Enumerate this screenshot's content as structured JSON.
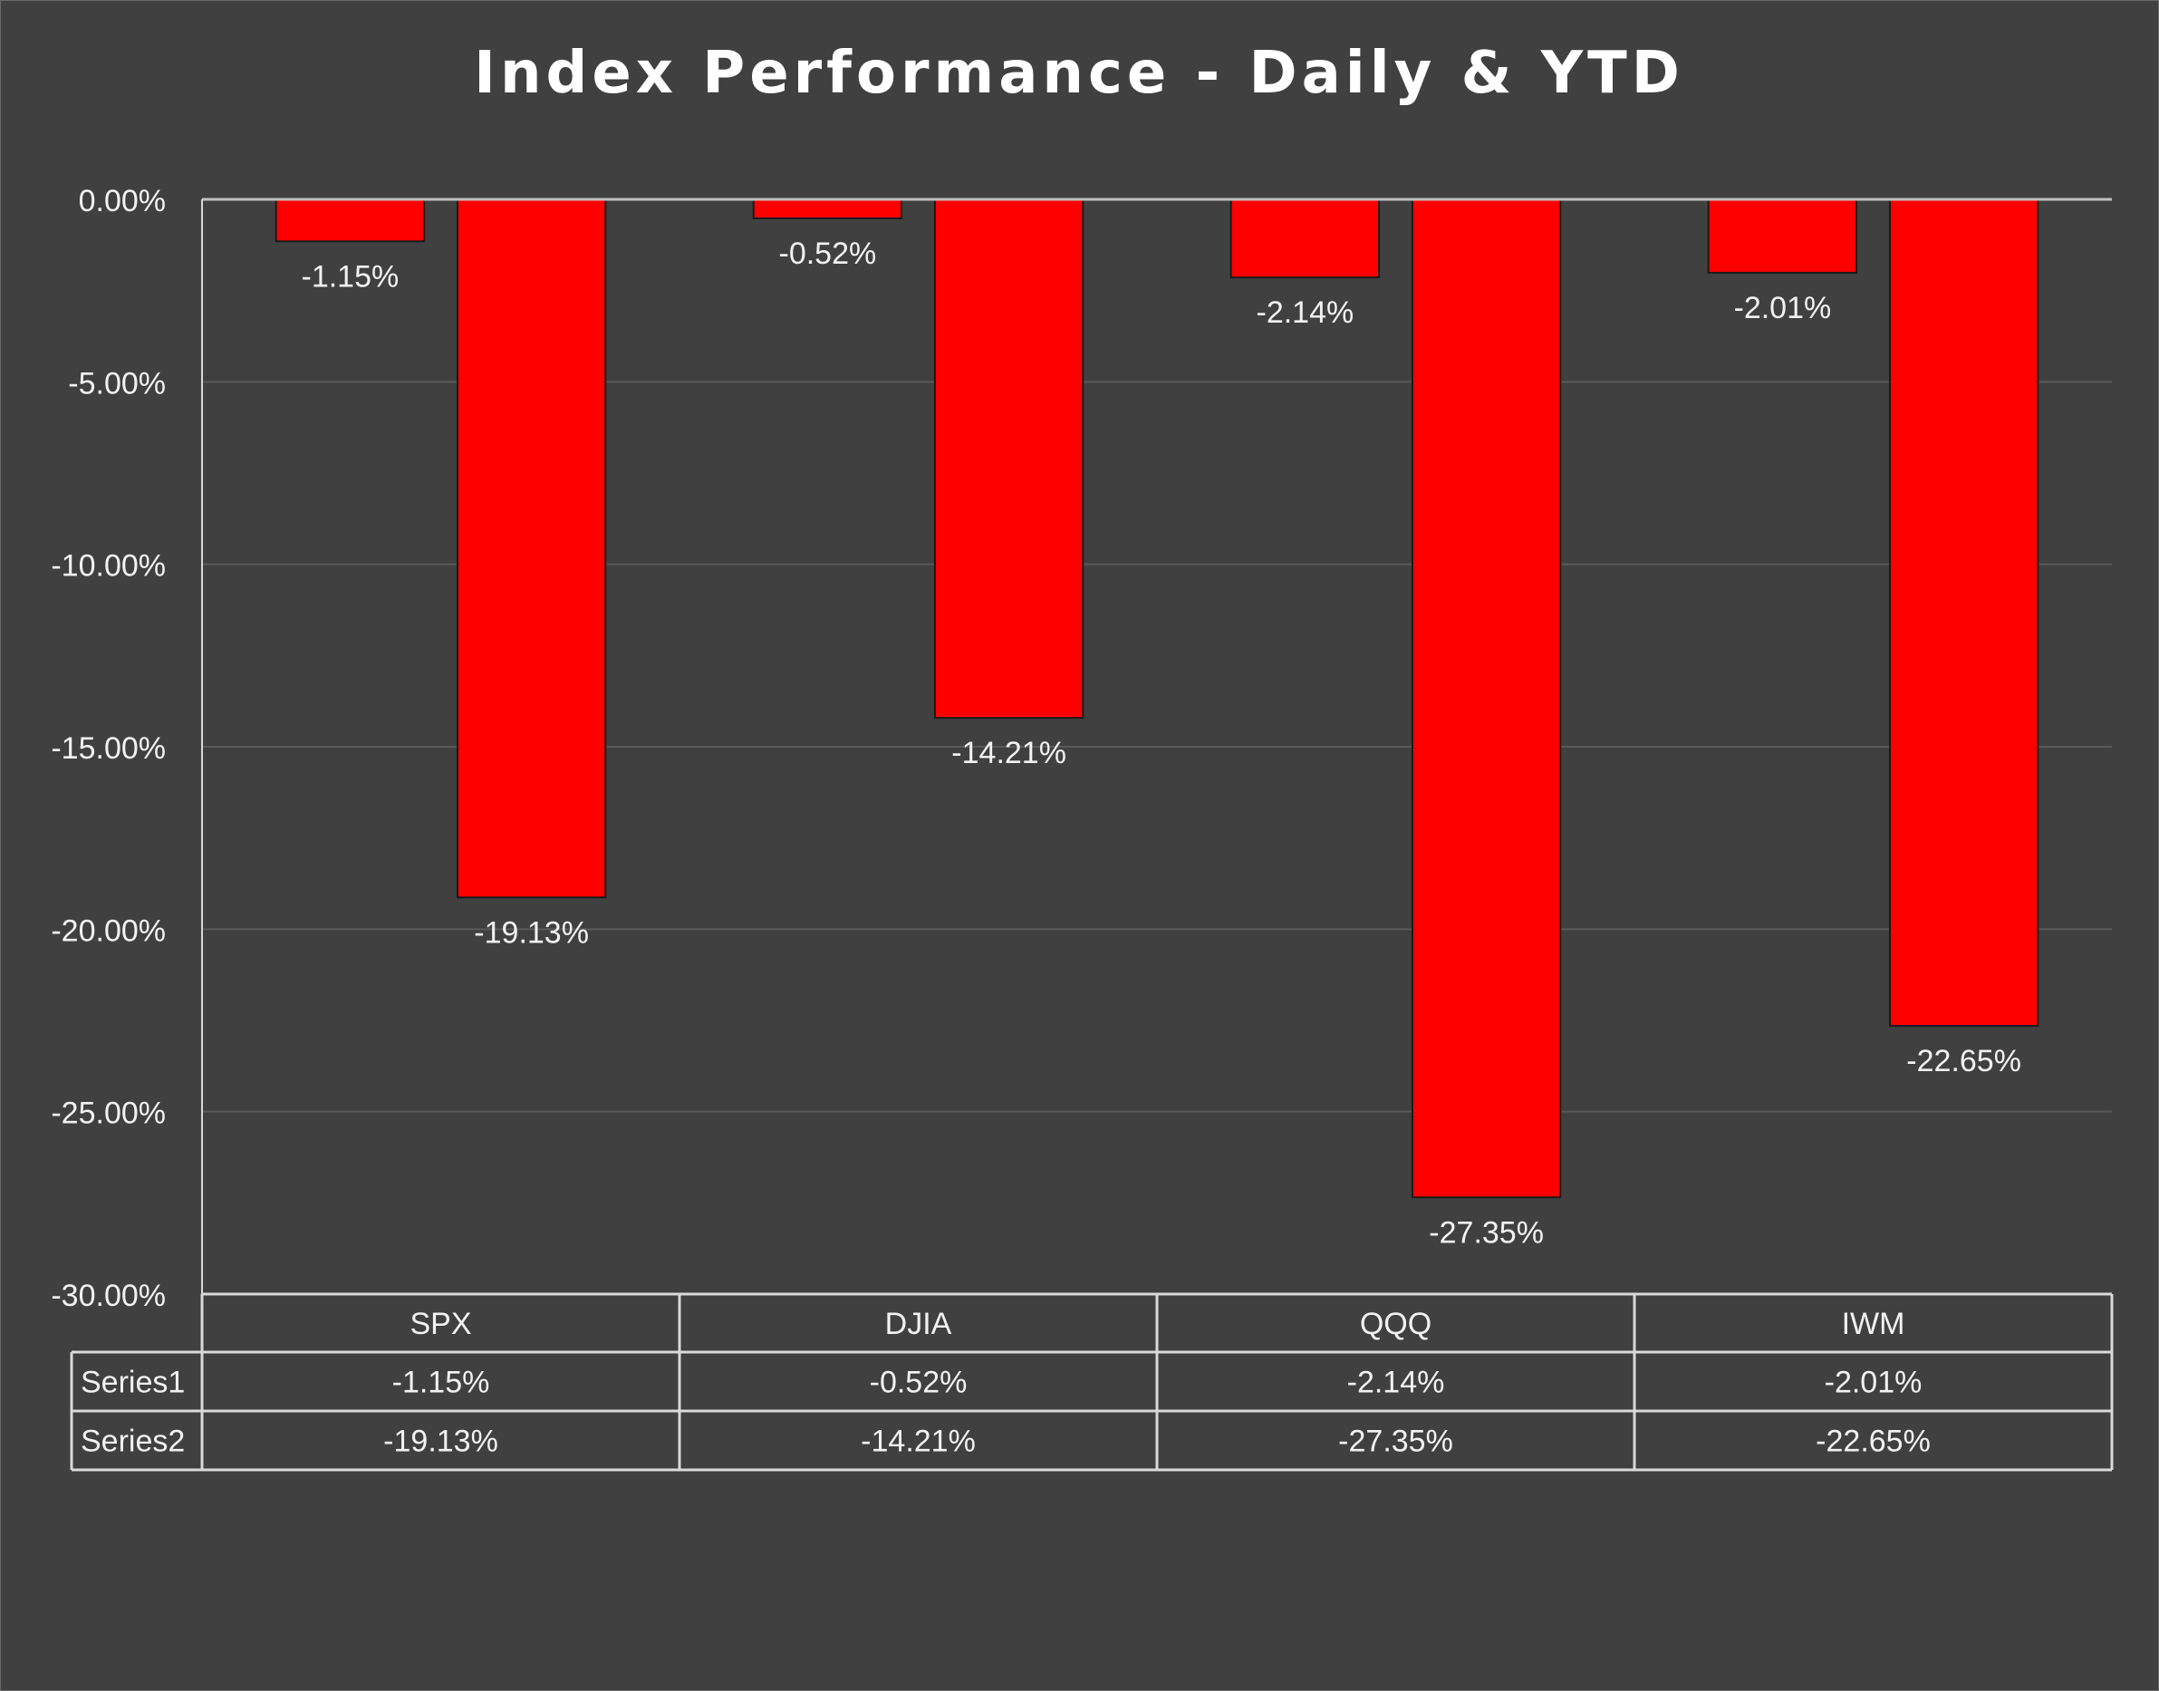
{
  "chart_data": {
    "type": "bar",
    "title": "Index Performance - Daily & YTD",
    "categories": [
      "SPX",
      "DJIA",
      "QQQ",
      "IWM"
    ],
    "series": [
      {
        "name": "Series1",
        "values": [
          -1.15,
          -0.52,
          -2.14,
          -2.01
        ],
        "labels": [
          "-1.15%",
          "-0.52%",
          "-2.14%",
          "-2.01%"
        ]
      },
      {
        "name": "Series2",
        "values": [
          -19.13,
          -14.21,
          -27.35,
          -22.65
        ],
        "labels": [
          "-19.13%",
          "-14.21%",
          "-27.35%",
          "-22.65%"
        ]
      }
    ],
    "ylim": [
      -30,
      0
    ],
    "yticks": [
      0,
      -5,
      -10,
      -15,
      -20,
      -25,
      -30
    ],
    "ytick_labels": [
      "0.00%",
      "-5.00%",
      "-10.00%",
      "-15.00%",
      "-20.00%",
      "-25.00%",
      "-30.00%"
    ],
    "grid": true,
    "data_table": true,
    "colors": {
      "background": "#404040",
      "bar_fill": "#ff0000",
      "bar_stroke": "#1a1a1a",
      "gridline": "#5a5a5a",
      "axis": "#bfbfbf",
      "text": "#f2f2f2",
      "table_border": "#d9d9d9"
    }
  }
}
